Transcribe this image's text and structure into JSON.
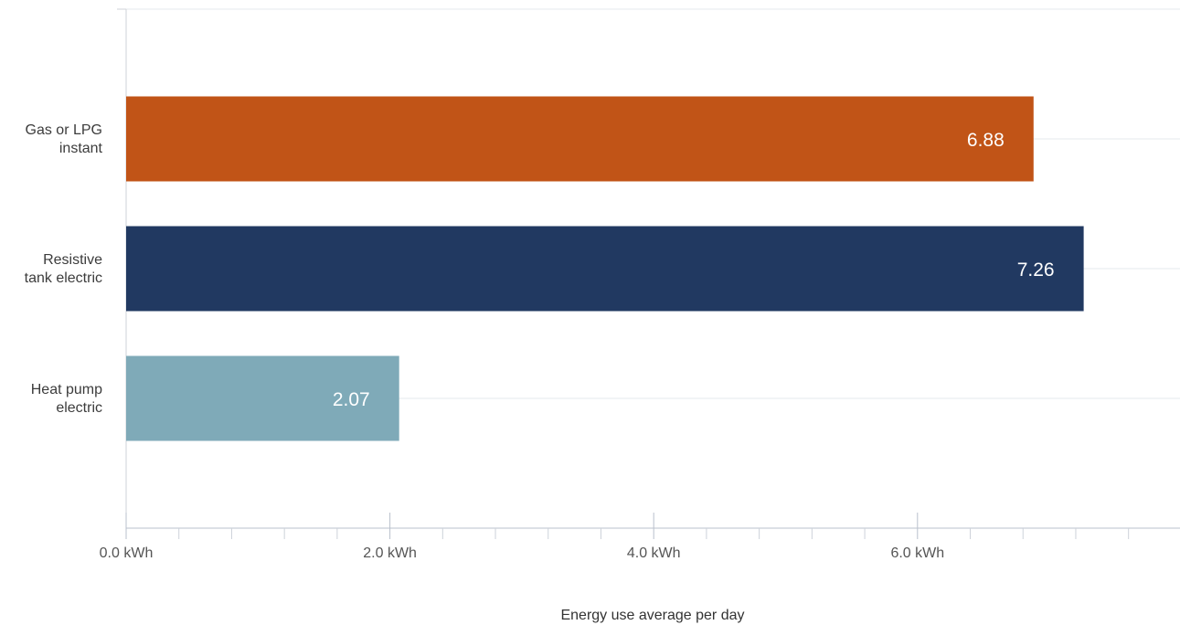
{
  "chart_data": {
    "type": "bar",
    "orientation": "horizontal",
    "categories": [
      "Gas or LPG\ninstant",
      "Resistive\ntank electric",
      "Heat pump\nelectric"
    ],
    "values": [
      6.88,
      7.26,
      2.07
    ],
    "data_labels": [
      "6.88",
      "7.26",
      "2.07"
    ],
    "bar_colors": [
      "#c15417",
      "#213961",
      "#7faab8"
    ],
    "xlabel": "Energy use average per day",
    "ylabel": "",
    "xlim": [
      0,
      8
    ],
    "x_ticks": [
      0,
      2,
      4,
      6
    ],
    "x_tick_labels": [
      "0.0 kWh",
      "2.0 kWh",
      "4.0 kWh",
      "6.0 kWh"
    ],
    "grid": true,
    "legend": "none"
  }
}
